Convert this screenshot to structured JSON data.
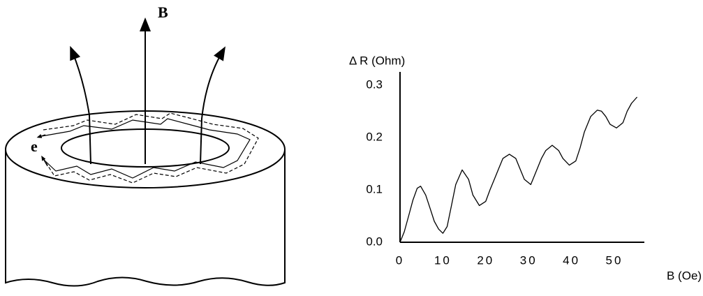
{
  "diagram": {
    "field_label": "B",
    "electron_label": "e"
  },
  "chart_data": {
    "type": "line",
    "x_label": "B  (Oe)",
    "y_label": "Δ R  (Ohm)",
    "x": [
      0,
      1,
      2,
      3,
      4,
      4.8,
      6,
      7,
      8,
      9,
      10,
      11,
      12,
      13,
      14.5,
      16,
      17,
      18.5,
      20,
      21,
      22,
      23,
      24,
      25.5,
      27,
      28,
      29,
      30.5,
      32,
      33,
      34,
      35.5,
      37,
      38,
      39.5,
      41,
      42,
      43,
      44.5,
      46,
      47,
      48,
      49,
      50.5,
      52,
      53,
      54,
      55.3
    ],
    "values": [
      0,
      0.02,
      0.05,
      0.08,
      0.103,
      0.107,
      0.09,
      0.065,
      0.04,
      0.025,
      0.017,
      0.03,
      0.07,
      0.11,
      0.138,
      0.12,
      0.09,
      0.07,
      0.078,
      0.1,
      0.12,
      0.14,
      0.16,
      0.168,
      0.16,
      0.14,
      0.12,
      0.11,
      0.14,
      0.16,
      0.175,
      0.185,
      0.175,
      0.16,
      0.147,
      0.155,
      0.18,
      0.21,
      0.24,
      0.252,
      0.25,
      0.24,
      0.225,
      0.218,
      0.228,
      0.25,
      0.265,
      0.277
    ],
    "color": "#000000",
    "xlim": [
      0,
      57
    ],
    "xticks": [
      0,
      10,
      20,
      30,
      40,
      50
    ],
    "ylim": [
      0,
      0.325
    ],
    "yticks": [
      {
        "value": 0,
        "label": "0.0"
      },
      0.1,
      0.2,
      0.3
    ],
    "grid": false
  }
}
